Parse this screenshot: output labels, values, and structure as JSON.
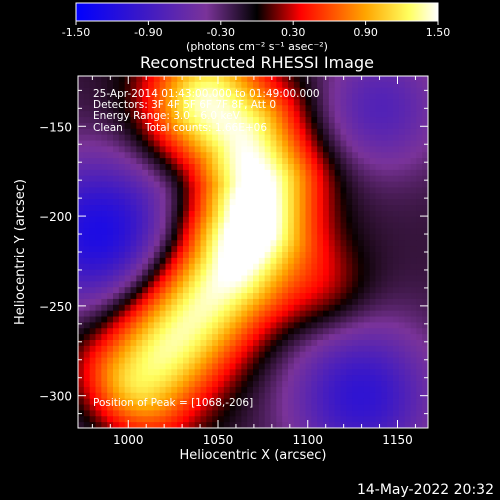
{
  "chart_data": {
    "type": "heatmap",
    "title": "Reconstructed RHESSI Image",
    "xlabel": "Heliocentric X (arcsec)",
    "ylabel": "Heliocentric Y (arcsec)",
    "xlim": [
      972,
      1167
    ],
    "ylim": [
      -318,
      -122
    ],
    "x_ticks": [
      1000,
      1050,
      1100,
      1150
    ],
    "y_ticks": [
      -150,
      -200,
      -250,
      -300
    ],
    "colorbar": {
      "min": -1.5,
      "max": 1.5,
      "ticks": [
        -1.5,
        -0.9,
        -0.3,
        0.3,
        0.9,
        1.5
      ],
      "tick_labels": [
        "-1.50",
        "-0.90",
        "-0.30",
        "0.30",
        "0.90",
        "1.50"
      ],
      "unit_label": "(photons cm⁻² s⁻¹ asec⁻²)",
      "colormap": [
        "#0000ff",
        "#4020c0",
        "#8a2e8c",
        "#ff0000",
        "#ffa000",
        "#ffff80",
        "#ffffff"
      ]
    },
    "annotations": {
      "time_range": "25-Apr-2014 01:43:00.000 to 01:49:00.000",
      "detectors": "Detectors: 3F 4F 5F 6F 7F 8F, Att 0",
      "energy": "Energy Range: 3.0 - 6.0 keV",
      "method": "Clean",
      "counts": "Total counts: 1.66E+06",
      "peak": "Position of Peak = [1068,-206]"
    },
    "peak": {
      "x": 1068,
      "y": -206
    },
    "grid_cells": 60
  },
  "footer": {
    "date": "14-May-2022 20:32"
  }
}
